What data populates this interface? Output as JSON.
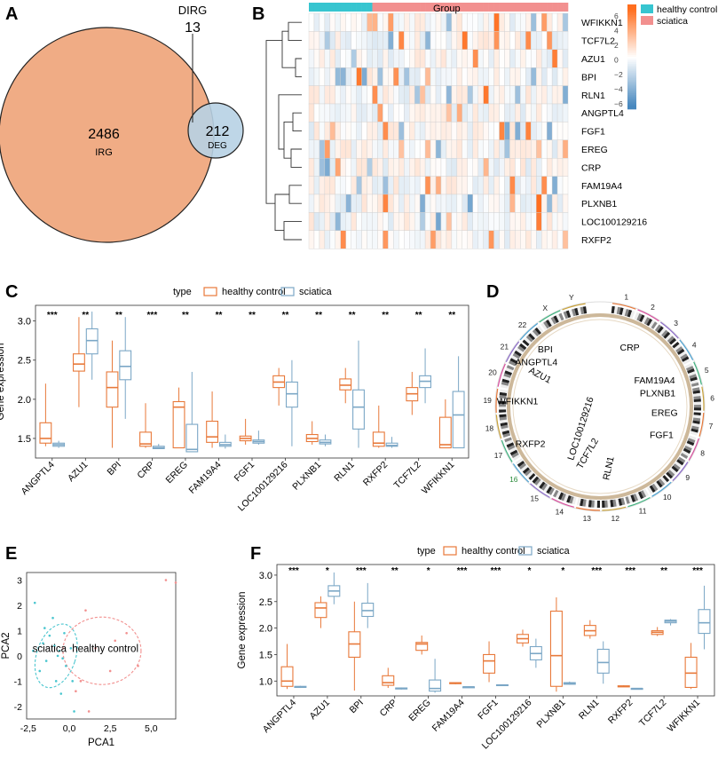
{
  "colors": {
    "healthy": "#e8793a",
    "sciatica": "#7ba7c6",
    "irg_fill": "#f0ac85",
    "deg_fill": "#b7d1e4",
    "heat_group_sciatica": "#f2908f",
    "heat_group_healthy": "#37c5d0"
  },
  "panels": {
    "A": {
      "label": "A",
      "chart_data": {
        "type": "venn",
        "sets": [
          {
            "name": "IRG",
            "size": 2486
          },
          {
            "name": "DEG",
            "size": 212
          }
        ],
        "intersection": {
          "name": "DIRG",
          "size": 13
        }
      },
      "irg_count": "2486",
      "irg_label": "IRG",
      "deg_count": "212",
      "deg_label": "DEG",
      "dirg_label": "DIRG",
      "dirg_count": "13"
    },
    "B": {
      "label": "B",
      "group_label": "Group",
      "legend_title_values": [
        "6",
        "4",
        "2",
        "0",
        "−2",
        "−4",
        "−6"
      ],
      "group_legend": [
        "healthy control",
        "sciatica"
      ],
      "chart_data": {
        "type": "heatmap",
        "rows": [
          "WFIKKN1",
          "TCF7L2",
          "AZU1",
          "BPI",
          "RLN1",
          "ANGPTL4",
          "FGF1",
          "EREG",
          "CRP",
          "FAM19A4",
          "PLXNB1",
          "LOC100129216",
          "RXFP2"
        ],
        "n_healthy_samples": 12,
        "n_sciatica_samples": 37,
        "color_range": [
          -6,
          6
        ]
      }
    },
    "C": {
      "label": "C",
      "legend_title": "type",
      "legend_items": [
        "healthy control",
        "sciatica"
      ],
      "chart_data": {
        "type": "box",
        "ylabel": "Gene expression",
        "ylim": [
          1.25,
          3.2
        ],
        "yticks": [
          "1.5",
          "2.0",
          "2.5",
          "3.0"
        ],
        "categories": [
          "ANGPTL4",
          "AZU1",
          "BPI",
          "CRP",
          "EREG",
          "FAM19A4",
          "FGF1",
          "LOC100129216",
          "PLXNB1",
          "RLN1",
          "RXFP2",
          "TCF7L2",
          "WFIKKN1"
        ],
        "significance": [
          "***",
          "**",
          "**",
          "***",
          "**",
          "**",
          "**",
          "**",
          "**",
          "**",
          "**",
          "**",
          "**"
        ],
        "series": [
          {
            "name": "healthy control",
            "boxes": [
              [
                1.4,
                1.44,
                1.5,
                1.7,
                2.2
              ],
              [
                1.9,
                2.36,
                2.45,
                2.58,
                3.05
              ],
              [
                1.38,
                1.9,
                2.15,
                2.35,
                2.75
              ],
              [
                1.38,
                1.4,
                1.43,
                1.58,
                1.95
              ],
              [
                1.38,
                1.38,
                1.9,
                1.97,
                2.15
              ],
              [
                1.38,
                1.45,
                1.52,
                1.72,
                2.1
              ],
              [
                1.42,
                1.47,
                1.5,
                1.53,
                1.75
              ],
              [
                1.92,
                2.15,
                2.22,
                2.3,
                2.4
              ],
              [
                1.42,
                1.46,
                1.5,
                1.55,
                1.72
              ],
              [
                1.95,
                2.12,
                2.18,
                2.26,
                2.4
              ],
              [
                1.38,
                1.4,
                1.44,
                1.58,
                1.92
              ],
              [
                1.8,
                1.98,
                2.07,
                2.15,
                2.35
              ],
              [
                1.38,
                1.38,
                1.42,
                1.77,
                2.0
              ]
            ]
          },
          {
            "name": "sciatica",
            "boxes": [
              [
                1.38,
                1.4,
                1.42,
                1.44,
                1.47
              ],
              [
                2.25,
                2.58,
                2.75,
                2.9,
                3.12
              ],
              [
                1.75,
                2.25,
                2.42,
                2.62,
                3.05
              ],
              [
                1.37,
                1.37,
                1.38,
                1.4,
                1.43
              ],
              [
                1.33,
                1.33,
                1.36,
                1.68,
                2.35
              ],
              [
                1.37,
                1.4,
                1.42,
                1.45,
                1.55
              ],
              [
                1.42,
                1.44,
                1.46,
                1.48,
                1.6
              ],
              [
                1.4,
                1.9,
                2.07,
                2.22,
                2.5
              ],
              [
                1.4,
                1.43,
                1.45,
                1.48,
                1.55
              ],
              [
                1.38,
                1.62,
                1.9,
                2.12,
                2.75
              ],
              [
                1.38,
                1.4,
                1.41,
                1.44,
                1.52
              ],
              [
                1.95,
                2.15,
                2.23,
                2.3,
                2.65
              ],
              [
                1.38,
                1.38,
                1.8,
                2.1,
                2.55
              ]
            ]
          }
        ]
      }
    },
    "D": {
      "label": "D",
      "chart_data": {
        "type": "circos",
        "chromosomes": [
          "1",
          "2",
          "3",
          "4",
          "5",
          "6",
          "7",
          "8",
          "9",
          "10",
          "11",
          "12",
          "13",
          "14",
          "15",
          "16",
          "17",
          "18",
          "19",
          "20",
          "21",
          "22",
          "X",
          "Y"
        ],
        "genes": [
          "CRP",
          "FAM19A4",
          "PLXNB1",
          "EREG",
          "FGF1",
          "RLN1",
          "TCF7L2",
          "LOC100129216",
          "RXFP2",
          "WFIKKN1",
          "AZU1",
          "ANGPTL4",
          "BPI"
        ]
      }
    },
    "E": {
      "label": "E",
      "chart_data": {
        "type": "scatter",
        "xlabel": "PCA1",
        "ylabel": "PCA2",
        "xticks": [
          "-2,5",
          "0,0",
          "2,5",
          "5,0"
        ],
        "yticks": [
          "3",
          "2",
          "1",
          "0",
          "-1",
          "-2"
        ],
        "xlim": [
          -2.6,
          6.5
        ],
        "ylim": [
          -2.5,
          3.3
        ],
        "groups": [
          {
            "name": "sciatica",
            "points": [
              [
                -2.1,
                2.1
              ],
              [
                -1.5,
                1.1
              ],
              [
                -1.2,
                0.8
              ],
              [
                -0.9,
                0.4
              ],
              [
                -0.6,
                0.2
              ],
              [
                -0.4,
                -0.1
              ],
              [
                -1.8,
                -0.6
              ],
              [
                -0.2,
                -0.4
              ],
              [
                -0.8,
                -1.0
              ],
              [
                -0.5,
                -1.5
              ],
              [
                -1.0,
                1.5
              ],
              [
                -0.3,
                0.9
              ],
              [
                -1.4,
                -0.2
              ],
              [
                -0.7,
                0.0
              ],
              [
                0.2,
                -1.0
              ],
              [
                -1.6,
                0.5
              ],
              [
                0.1,
                0.3
              ],
              [
                -2.2,
                0.2
              ],
              [
                0.3,
                -2.2
              ]
            ]
          },
          {
            "name": "healthy control",
            "points": [
              [
                1.0,
                1.8
              ],
              [
                1.6,
                0.3
              ],
              [
                2.5,
                -0.6
              ],
              [
                3.5,
                0.9
              ],
              [
                0.7,
                -1.0
              ],
              [
                2.8,
                0.6
              ],
              [
                5.9,
                3.0
              ],
              [
                6.5,
                2.9
              ],
              [
                4.2,
                -0.4
              ],
              [
                0.4,
                -1.4
              ],
              [
                1.2,
                -2.2
              ]
            ]
          }
        ],
        "ellipse_labels": [
          "sciatica",
          "healthy control"
        ]
      }
    },
    "F": {
      "label": "F",
      "legend_title": "type",
      "legend_items": [
        "healthy control",
        "sciatica"
      ],
      "chart_data": {
        "type": "box",
        "ylabel": "Gene expression",
        "ylim": [
          0.72,
          3.2
        ],
        "yticks": [
          "1.0",
          "1.5",
          "2.0",
          "2.5",
          "3.0"
        ],
        "categories": [
          "ANGPTL4",
          "AZU1",
          "BPI",
          "CRP",
          "EREG",
          "FAM19A4",
          "FGF1",
          "LOC100129216",
          "PLXNB1",
          "RLN1",
          "RXFP2",
          "TCF7L2",
          "WFIKKN1"
        ],
        "significance": [
          "***",
          "*",
          "***",
          "**",
          "*",
          "***",
          "***",
          "*",
          "*",
          "***",
          "***",
          "**",
          "***"
        ],
        "series": [
          {
            "name": "healthy control",
            "boxes": [
              [
                0.85,
                0.9,
                1.0,
                1.27,
                1.7
              ],
              [
                2.0,
                2.2,
                2.38,
                2.48,
                2.6
              ],
              [
                0.82,
                1.45,
                1.7,
                1.93,
                2.5
              ],
              [
                0.87,
                0.92,
                0.97,
                1.1,
                1.25
              ],
              [
                1.5,
                1.58,
                1.7,
                1.73,
                1.86
              ],
              [
                0.94,
                0.95,
                0.96,
                0.97,
                0.97
              ],
              [
                0.98,
                1.15,
                1.38,
                1.5,
                1.75
              ],
              [
                1.65,
                1.72,
                1.8,
                1.88,
                1.97
              ],
              [
                0.8,
                0.9,
                1.48,
                2.32,
                2.58
              ],
              [
                1.8,
                1.86,
                1.95,
                2.05,
                2.15
              ],
              [
                0.89,
                0.89,
                0.9,
                0.91,
                0.92
              ],
              [
                1.85,
                1.88,
                1.92,
                1.95,
                2.02
              ],
              [
                0.85,
                0.88,
                1.15,
                1.45,
                1.72
              ]
            ]
          },
          {
            "name": "sciatica",
            "boxes": [
              [
                0.87,
                0.88,
                0.89,
                0.9,
                0.91
              ],
              [
                2.45,
                2.6,
                2.7,
                2.8,
                3.05
              ],
              [
                2.0,
                2.22,
                2.33,
                2.47,
                2.85
              ],
              [
                0.84,
                0.85,
                0.86,
                0.87,
                0.88
              ],
              [
                0.78,
                0.81,
                0.86,
                1.02,
                1.42
              ],
              [
                0.88,
                0.88,
                0.89,
                0.89,
                0.9
              ],
              [
                0.91,
                0.92,
                0.92,
                0.93,
                0.93
              ],
              [
                1.25,
                1.4,
                1.52,
                1.65,
                1.8
              ],
              [
                0.93,
                0.94,
                0.95,
                0.97,
                0.99
              ],
              [
                0.95,
                1.15,
                1.35,
                1.6,
                1.75
              ],
              [
                0.85,
                0.85,
                0.86,
                0.86,
                0.87
              ],
              [
                2.05,
                2.1,
                2.13,
                2.15,
                2.17
              ],
              [
                1.6,
                1.9,
                2.1,
                2.35,
                2.8
              ]
            ]
          }
        ]
      }
    }
  }
}
